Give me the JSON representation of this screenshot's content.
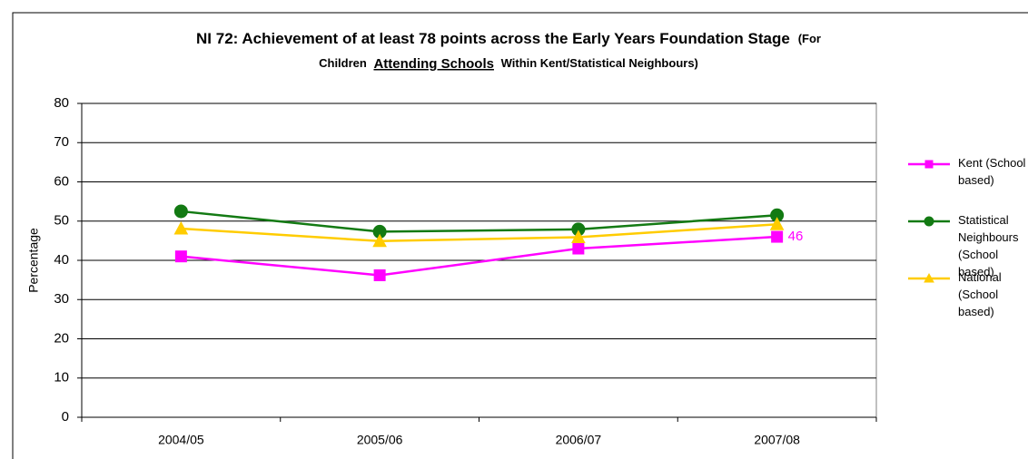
{
  "chart_data": {
    "type": "line",
    "title_parts": [
      "NI 72: Achievement of at least 78 points across the Early Years Foundation Stage",
      "(For",
      "Children",
      "Attending Schools",
      "Within Kent/Statistical Neighbours)"
    ],
    "y_label": "Percentage",
    "categories": [
      "2004/05",
      "2005/06",
      "2006/07",
      "2007/08"
    ],
    "series": [
      {
        "name": "Kent (School based)",
        "color": "#ff00ff",
        "marker": "square",
        "values": [
          41,
          36.2,
          43,
          46
        ],
        "value_labels": [
          null,
          null,
          null,
          "46"
        ]
      },
      {
        "name": "Statistical Neighbours (School based)",
        "color": "#137a13",
        "marker": "circle",
        "values": [
          52.5,
          47.3,
          47.9,
          51.5
        ]
      },
      {
        "name": "National (School based)",
        "color": "#ffcc00",
        "marker": "triangle",
        "values": [
          48.1,
          44.9,
          45.9,
          49.2
        ]
      }
    ],
    "ylim": [
      0,
      80
    ],
    "yticks": [
      0,
      10,
      20,
      30,
      40,
      50,
      60,
      70,
      80
    ],
    "grid": true,
    "legend": "right"
  }
}
